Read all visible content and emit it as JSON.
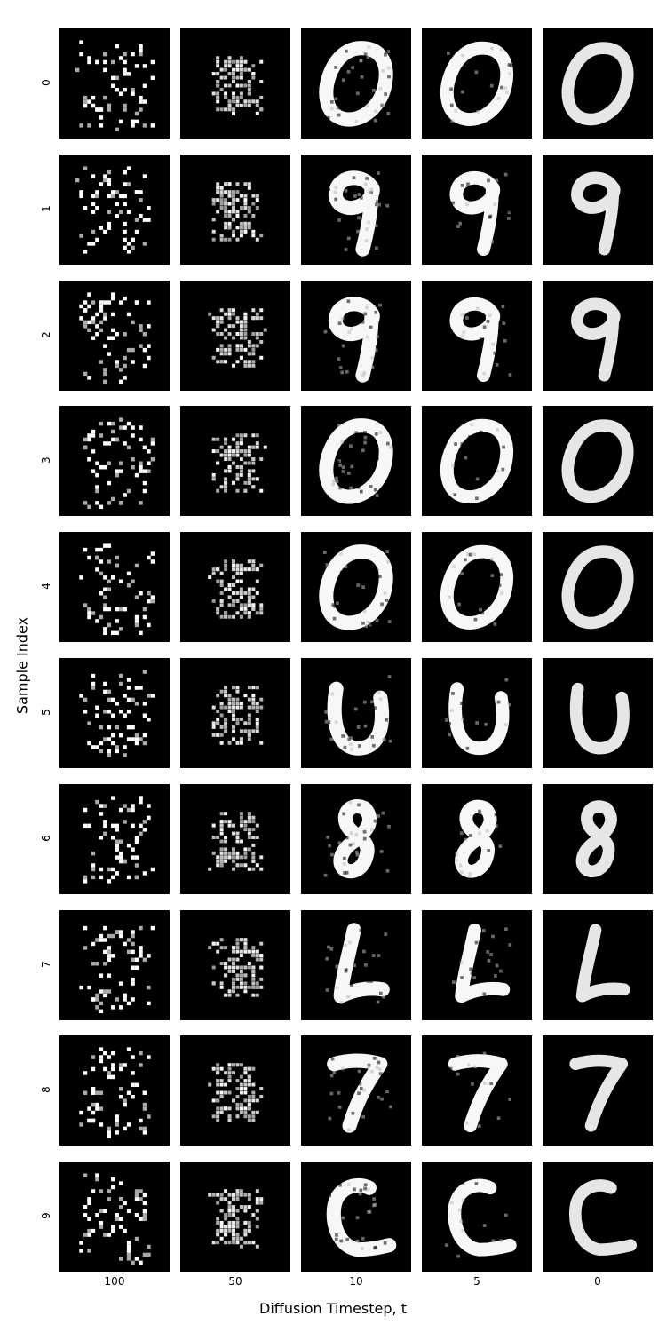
{
  "figure": {
    "xlabel": "Diffusion Timestep, t",
    "ylabel": "Sample Index",
    "columns": [
      "100",
      "50",
      "10",
      "5",
      "0"
    ],
    "rows": [
      "0",
      "1",
      "2",
      "3",
      "4",
      "5",
      "6",
      "7",
      "8",
      "9"
    ],
    "final_digits": [
      "0",
      "9",
      "9",
      "0",
      "0",
      "U",
      "8",
      "L",
      "7",
      "C"
    ],
    "colors": {
      "background": "#000000",
      "foreground": "#ffffff"
    }
  }
}
